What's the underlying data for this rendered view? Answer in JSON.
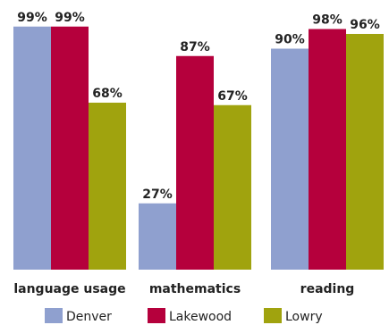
{
  "chart_data": {
    "type": "bar",
    "categories": [
      "language usage",
      "mathematics",
      "reading"
    ],
    "series": [
      {
        "name": "Denver",
        "color": "#8fa0cf",
        "values": [
          99,
          27,
          90
        ],
        "labels": [
          "99%",
          "27%",
          "90%"
        ]
      },
      {
        "name": "Lakewood",
        "color": "#b5003c",
        "values": [
          99,
          87,
          98
        ],
        "labels": [
          "99%",
          "87%",
          "98%"
        ]
      },
      {
        "name": "Lowry",
        "color": "#a0a30e",
        "values": [
          68,
          67,
          96
        ],
        "labels": [
          "68%",
          "67%",
          "96%"
        ]
      }
    ],
    "ylim": [
      0,
      100
    ],
    "unit": "%",
    "grid": false,
    "legend_position": "bottom"
  }
}
